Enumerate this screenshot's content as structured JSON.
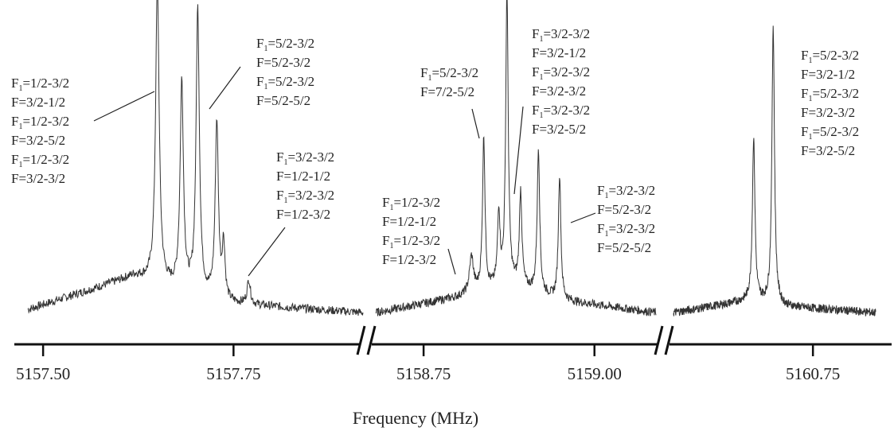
{
  "chart_data": {
    "type": "line",
    "xlabel": "Frequency (MHz)",
    "ylabel": "",
    "title": "",
    "grid": false,
    "axis_breaks": true,
    "segments": [
      {
        "xlim": [
          5157.48,
          5157.92
        ],
        "ticks": [
          {
            "value": 5157.5,
            "label": "5157.50"
          },
          {
            "value": 5157.75,
            "label": "5157.75"
          }
        ],
        "peaks": [
          {
            "x": 5157.65,
            "height": 0.98,
            "width": 0.0028
          },
          {
            "x": 5157.682,
            "height": 0.68,
            "width": 0.0026
          },
          {
            "x": 5157.703,
            "height": 0.93,
            "width": 0.0026
          },
          {
            "x": 5157.728,
            "height": 0.58,
            "width": 0.0025
          },
          {
            "x": 5157.737,
            "height": 0.18,
            "width": 0.0022
          },
          {
            "x": 5157.77,
            "height": 0.08,
            "width": 0.0025
          }
        ],
        "baseline": [
          [
            5157.48,
            0.02
          ],
          [
            5157.62,
            0.13
          ],
          [
            5157.68,
            0.08
          ],
          [
            5157.74,
            0.04
          ],
          [
            5157.92,
            0.01
          ]
        ]
      },
      {
        "xlim": [
          5158.68,
          5159.09
        ],
        "ticks": [
          {
            "value": 5158.75,
            "label": "5158.75"
          },
          {
            "value": 5159.0,
            "label": "5159.00"
          }
        ],
        "peaks": [
          {
            "x": 5158.82,
            "height": 0.12,
            "width": 0.0035
          },
          {
            "x": 5158.838,
            "height": 0.5,
            "width": 0.0022
          },
          {
            "x": 5158.86,
            "height": 0.24,
            "width": 0.0022
          },
          {
            "x": 5158.872,
            "height": 0.96,
            "width": 0.0022
          },
          {
            "x": 5158.892,
            "height": 0.31,
            "width": 0.0022
          },
          {
            "x": 5158.918,
            "height": 0.47,
            "width": 0.0022
          },
          {
            "x": 5158.949,
            "height": 0.41,
            "width": 0.0022
          }
        ],
        "baseline": [
          [
            5158.68,
            0.01
          ],
          [
            5158.8,
            0.06
          ],
          [
            5158.88,
            0.1
          ],
          [
            5158.95,
            0.05
          ],
          [
            5159.09,
            0.01
          ]
        ]
      },
      {
        "xlim": [
          5160.55,
          5160.84
        ],
        "ticks": [
          {
            "value": 5160.75,
            "label": "5160.75"
          }
        ],
        "peaks": [
          {
            "x": 5160.665,
            "height": 0.53,
            "width": 0.0022
          },
          {
            "x": 5160.693,
            "height": 0.91,
            "width": 0.0022
          }
        ],
        "baseline": [
          [
            5160.55,
            0.01
          ],
          [
            5160.66,
            0.05
          ],
          [
            5160.71,
            0.03
          ],
          [
            5160.84,
            0.01
          ]
        ]
      }
    ],
    "annotations": [
      {
        "lines": [
          {
            "F1": "1/2-3/2",
            "F": "3/2-1/2"
          },
          {
            "F1": "1/2-3/2",
            "F": "3/2-5/2"
          },
          {
            "F1": "1/2-3/2",
            "F": "3/2-3/2"
          }
        ]
      },
      {
        "lines": [
          {
            "F1": "5/2-3/2",
            "F": "5/2-3/2"
          },
          {
            "F1": "5/2-3/2",
            "F": "5/2-5/2"
          }
        ]
      },
      {
        "lines": [
          {
            "F1": "3/2-3/2",
            "F": "1/2-1/2"
          },
          {
            "F1": "3/2-3/2",
            "F": "1/2-3/2"
          }
        ]
      },
      {
        "lines": [
          {
            "F1": "1/2-3/2",
            "F": "1/2-1/2"
          },
          {
            "F1": "1/2-3/2",
            "F": "1/2-3/2"
          }
        ]
      },
      {
        "lines": [
          {
            "F1": "5/2-3/2",
            "F": "7/2-5/2"
          }
        ]
      },
      {
        "lines": [
          {
            "F1": "3/2-3/2",
            "F": "3/2-1/2"
          },
          {
            "F1": "3/2-3/2",
            "F": "3/2-3/2"
          },
          {
            "F1": "3/2-3/2",
            "F": "3/2-5/2"
          }
        ]
      },
      {
        "lines": [
          {
            "F1": "3/2-3/2",
            "F": "5/2-3/2"
          },
          {
            "F1": "3/2-3/2",
            "F": "5/2-5/2"
          }
        ]
      },
      {
        "lines": [
          {
            "F1": "5/2-3/2",
            "F": "3/2-1/2"
          },
          {
            "F1": "5/2-3/2",
            "F": "3/2-3/2"
          },
          {
            "F1": "5/2-3/2",
            "F": "3/2-5/2"
          }
        ]
      }
    ]
  },
  "colors": {
    "line": "#333333",
    "axis": "#111111",
    "text": "#222222"
  }
}
